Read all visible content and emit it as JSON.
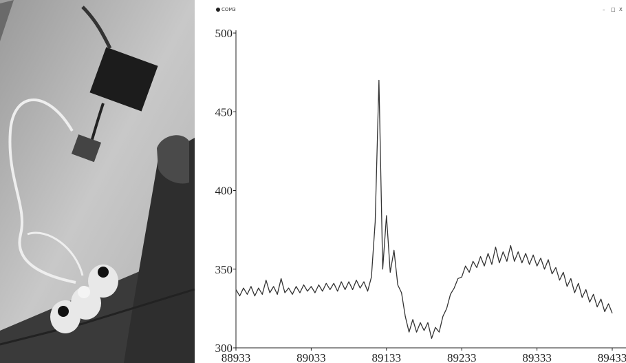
{
  "window": {
    "title": "COM3",
    "controls": [
      "–",
      "□",
      "X"
    ]
  },
  "chart_data": {
    "type": "line",
    "x": [
      88933,
      88938,
      88943,
      88948,
      88953,
      88958,
      88963,
      88968,
      88973,
      88978,
      88983,
      88988,
      88993,
      88998,
      89003,
      89008,
      89013,
      89018,
      89023,
      89028,
      89033,
      89038,
      89043,
      89048,
      89053,
      89058,
      89063,
      89068,
      89073,
      89078,
      89083,
      89088,
      89093,
      89098,
      89103,
      89108,
      89113,
      89118,
      89123,
      89128,
      89133,
      89138,
      89143,
      89148,
      89153,
      89158,
      89163,
      89168,
      89173,
      89178,
      89183,
      89188,
      89193,
      89198,
      89203,
      89208,
      89213,
      89218,
      89223,
      89228,
      89233,
      89238,
      89243,
      89248,
      89253,
      89258,
      89263,
      89268,
      89273,
      89278,
      89283,
      89288,
      89293,
      89298,
      89303,
      89308,
      89313,
      89318,
      89323,
      89328,
      89333,
      89338,
      89343,
      89348,
      89353,
      89358,
      89363,
      89368,
      89373,
      89378,
      89383,
      89388,
      89393,
      89398,
      89403,
      89408,
      89413,
      89418,
      89423,
      89428,
      89433
    ],
    "values": [
      337,
      333,
      338,
      334,
      339,
      333,
      338,
      334,
      343,
      335,
      339,
      334,
      344,
      335,
      338,
      334,
      339,
      335,
      340,
      336,
      339,
      335,
      340,
      336,
      341,
      337,
      341,
      336,
      342,
      337,
      342,
      337,
      343,
      338,
      342,
      336,
      345,
      380,
      470,
      350,
      384,
      348,
      362,
      340,
      335,
      320,
      310,
      318,
      310,
      316,
      311,
      316,
      306,
      313,
      310,
      320,
      325,
      334,
      338,
      344,
      345,
      352,
      348,
      355,
      351,
      358,
      352,
      360,
      353,
      364,
      354,
      361,
      355,
      365,
      355,
      361,
      354,
      360,
      353,
      359,
      352,
      357,
      350,
      356,
      347,
      351,
      343,
      348,
      339,
      344,
      335,
      341,
      332,
      337,
      329,
      334,
      326,
      331,
      323,
      328,
      322
    ],
    "color": "#333333",
    "xlim": [
      88933,
      89433
    ],
    "xticks": [
      88933,
      89033,
      89133,
      89233,
      89333,
      89433
    ],
    "ylim": [
      300,
      500
    ],
    "yticks": [
      300,
      350,
      400,
      450,
      500
    ],
    "grid": false
  }
}
